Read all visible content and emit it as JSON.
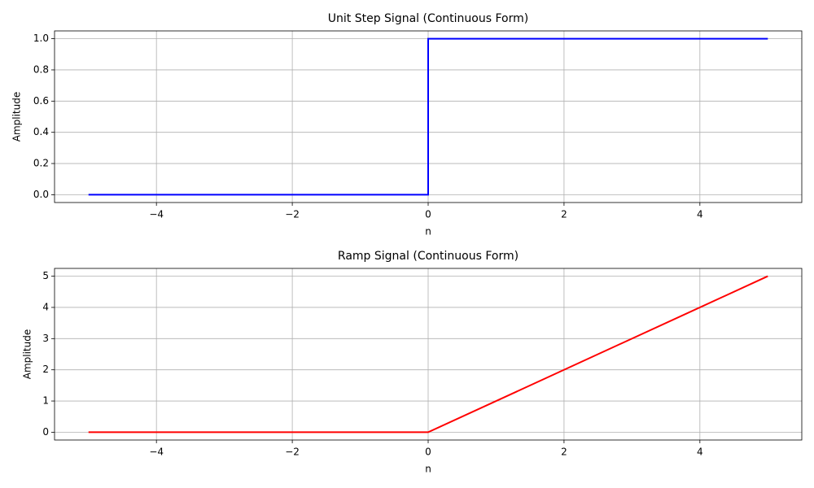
{
  "chart_data": [
    {
      "type": "line",
      "title": "Unit Step Signal (Continuous Form)",
      "xlabel": "n",
      "ylabel": "Amplitude",
      "x": [
        -5,
        0,
        0,
        5
      ],
      "values": [
        0,
        0,
        1,
        1
      ],
      "color": "#0000ff",
      "xlim": [
        -5.5,
        5.5
      ],
      "ylim": [
        -0.05,
        1.05
      ],
      "xticks": [
        {
          "value": -4,
          "label": "−4"
        },
        {
          "value": -2,
          "label": "−2"
        },
        0,
        2,
        4
      ],
      "yticks": [
        {
          "value": 0,
          "label": "0.0"
        },
        0.2,
        0.4,
        0.6,
        0.8,
        {
          "value": 1,
          "label": "1.0"
        }
      ],
      "grid": true
    },
    {
      "type": "line",
      "title": "Ramp Signal (Continuous Form)",
      "xlabel": "n",
      "ylabel": "Amplitude",
      "x": [
        -5,
        0,
        5
      ],
      "values": [
        0,
        0,
        5
      ],
      "color": "#ff0000",
      "xlim": [
        -5.5,
        5.5
      ],
      "ylim": [
        -0.25,
        5.25
      ],
      "xticks": [
        {
          "value": -4,
          "label": "−4"
        },
        {
          "value": -2,
          "label": "−2"
        },
        0,
        2,
        4
      ],
      "yticks": [
        0,
        1,
        2,
        3,
        4,
        5
      ],
      "grid": true
    }
  ]
}
